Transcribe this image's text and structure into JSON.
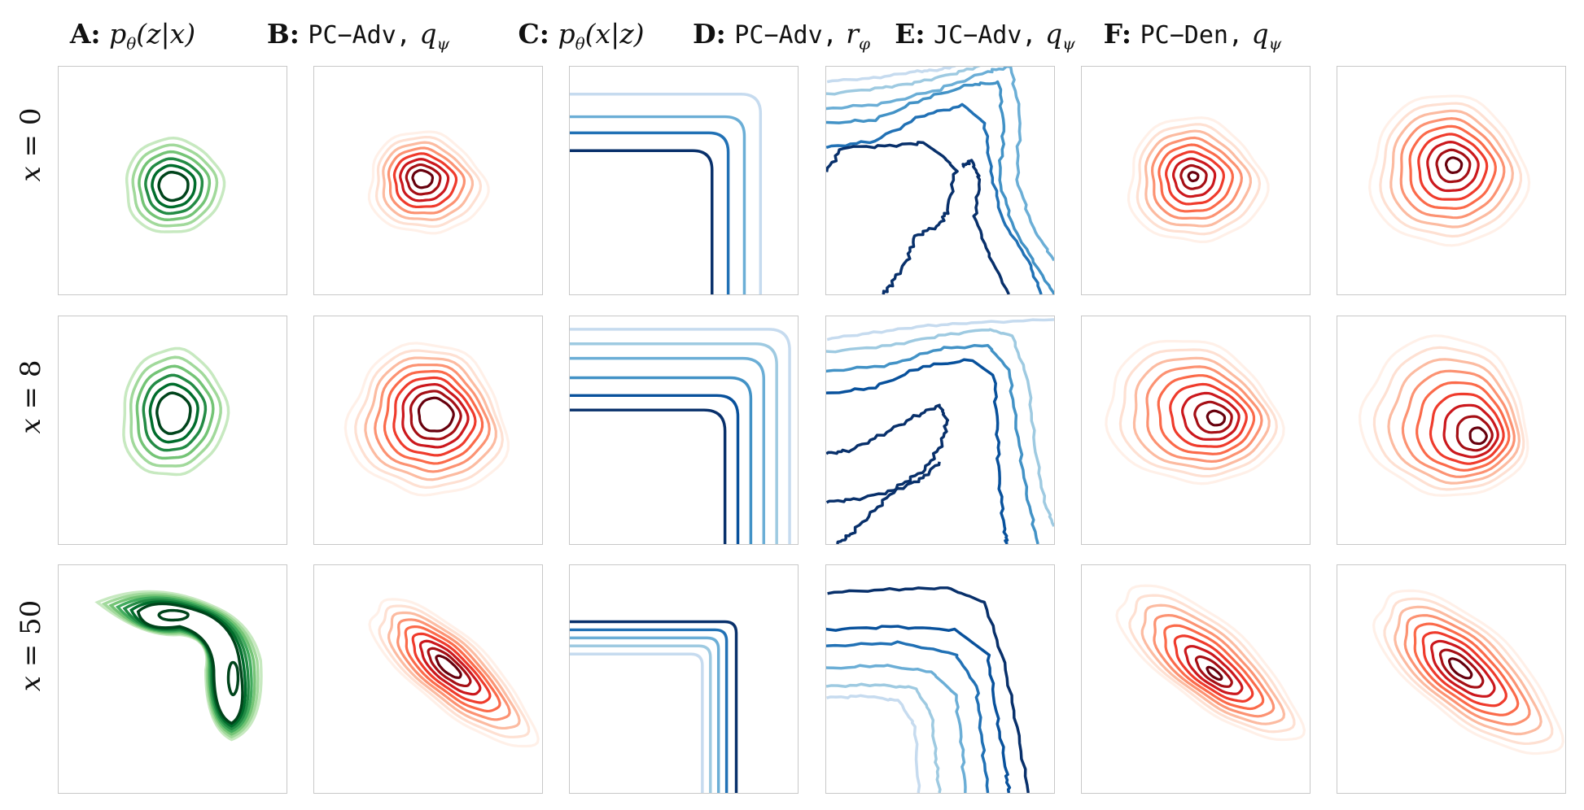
{
  "columns": [
    {
      "id": "A",
      "letter": "A:",
      "math": "pθ(z|x)",
      "mono": "",
      "cmap": "green"
    },
    {
      "id": "B",
      "letter": "B:",
      "mono": "PC−Adv,",
      "math": "qψ",
      "cmap": "red"
    },
    {
      "id": "C",
      "letter": "C:",
      "math": "pθ(x|z)",
      "mono": "",
      "cmap": "blue"
    },
    {
      "id": "D",
      "letter": "D:",
      "mono": "PC−Adv,",
      "math": "rφ",
      "cmap": "blue"
    },
    {
      "id": "E",
      "letter": "E:",
      "mono": "JC−Adv,",
      "math": "qψ",
      "cmap": "red"
    },
    {
      "id": "F",
      "letter": "F:",
      "mono": "PC−Den,",
      "math": "qψ",
      "cmap": "red"
    }
  ],
  "rows": [
    {
      "label_var": "x",
      "label_rest": " = 0"
    },
    {
      "label_var": "x",
      "label_rest": " = 8"
    },
    {
      "label_var": "x",
      "label_rest": " = 50"
    }
  ],
  "colors": {
    "green": [
      "#e5f5e0",
      "#c7e9c0",
      "#a1d99b",
      "#74c476",
      "#41ab5d",
      "#238b45",
      "#006d2c",
      "#00441b"
    ],
    "red": [
      "#fff0e8",
      "#fee0d2",
      "#fcbba1",
      "#fc9272",
      "#fb6a4a",
      "#ef3b2c",
      "#cb181d",
      "#a50f15",
      "#67000d"
    ],
    "blue": [
      "#c6dbef",
      "#9ecae1",
      "#6baed6",
      "#4292c6",
      "#2171b5",
      "#08519c",
      "#08306b"
    ],
    "panel_border": "#c8c8c8"
  }
}
